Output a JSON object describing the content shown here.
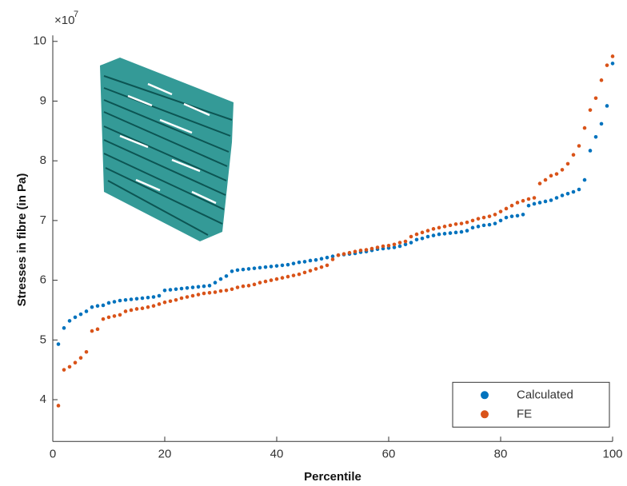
{
  "chart_data": {
    "type": "scatter",
    "x_label": "Percentile",
    "y_label": "Stresses in fibre (in Pa)",
    "y_scale_label": "×10",
    "y_scale_exponent": "7",
    "xlim": [
      0,
      100
    ],
    "xticks": [
      0,
      20,
      40,
      60,
      80,
      100
    ],
    "ylim": [
      3.3,
      10.1
    ],
    "yticks": [
      4,
      5,
      6,
      7,
      8,
      9,
      10
    ],
    "legend": "bottom-right",
    "x": [
      1,
      2,
      3,
      4,
      5,
      6,
      7,
      8,
      9,
      10,
      11,
      12,
      13,
      14,
      15,
      16,
      17,
      18,
      19,
      20,
      21,
      22,
      23,
      24,
      25,
      26,
      27,
      28,
      29,
      30,
      31,
      32,
      33,
      34,
      35,
      36,
      37,
      38,
      39,
      40,
      41,
      42,
      43,
      44,
      45,
      46,
      47,
      48,
      49,
      50,
      51,
      52,
      53,
      54,
      55,
      56,
      57,
      58,
      59,
      60,
      61,
      62,
      63,
      64,
      65,
      66,
      67,
      68,
      69,
      70,
      71,
      72,
      73,
      74,
      75,
      76,
      77,
      78,
      79,
      80,
      81,
      82,
      83,
      84,
      85,
      86,
      87,
      88,
      89,
      90,
      91,
      92,
      93,
      94,
      95,
      96,
      97,
      98,
      99,
      100
    ],
    "series": [
      {
        "name": "Calculated",
        "color": "#0072bd",
        "values": [
          4.93,
          5.2,
          5.32,
          5.38,
          5.43,
          5.48,
          5.55,
          5.57,
          5.58,
          5.62,
          5.64,
          5.66,
          5.67,
          5.68,
          5.69,
          5.7,
          5.71,
          5.72,
          5.74,
          5.83,
          5.84,
          5.85,
          5.86,
          5.87,
          5.88,
          5.89,
          5.9,
          5.91,
          5.96,
          6.02,
          6.07,
          6.15,
          6.17,
          6.18,
          6.19,
          6.2,
          6.21,
          6.22,
          6.23,
          6.24,
          6.25,
          6.26,
          6.28,
          6.3,
          6.31,
          6.33,
          6.34,
          6.36,
          6.38,
          6.4,
          6.42,
          6.43,
          6.44,
          6.45,
          6.47,
          6.48,
          6.5,
          6.52,
          6.53,
          6.54,
          6.55,
          6.57,
          6.6,
          6.63,
          6.68,
          6.7,
          6.73,
          6.75,
          6.77,
          6.78,
          6.79,
          6.8,
          6.81,
          6.83,
          6.88,
          6.9,
          6.92,
          6.93,
          6.95,
          7.0,
          7.05,
          7.07,
          7.08,
          7.1,
          7.25,
          7.28,
          7.3,
          7.32,
          7.34,
          7.38,
          7.42,
          7.45,
          7.48,
          7.52,
          7.68,
          8.17,
          8.4,
          8.62,
          8.92,
          9.63
        ]
      },
      {
        "name": "FE",
        "color": "#d95319",
        "values": [
          3.9,
          4.5,
          4.55,
          4.62,
          4.7,
          4.8,
          5.15,
          5.18,
          5.35,
          5.38,
          5.4,
          5.42,
          5.48,
          5.5,
          5.52,
          5.53,
          5.55,
          5.57,
          5.6,
          5.63,
          5.65,
          5.67,
          5.7,
          5.72,
          5.74,
          5.76,
          5.78,
          5.79,
          5.8,
          5.82,
          5.83,
          5.85,
          5.88,
          5.9,
          5.91,
          5.93,
          5.96,
          5.98,
          6.0,
          6.02,
          6.04,
          6.06,
          6.08,
          6.1,
          6.13,
          6.16,
          6.19,
          6.22,
          6.25,
          6.35,
          6.42,
          6.44,
          6.46,
          6.48,
          6.5,
          6.51,
          6.53,
          6.55,
          6.57,
          6.58,
          6.6,
          6.63,
          6.65,
          6.73,
          6.77,
          6.8,
          6.83,
          6.86,
          6.88,
          6.9,
          6.92,
          6.94,
          6.95,
          6.97,
          7.0,
          7.03,
          7.05,
          7.07,
          7.1,
          7.15,
          7.2,
          7.25,
          7.3,
          7.33,
          7.36,
          7.38,
          7.62,
          7.68,
          7.75,
          7.78,
          7.85,
          7.95,
          8.1,
          8.25,
          8.55,
          8.85,
          9.05,
          9.35,
          9.6,
          9.75
        ]
      }
    ]
  }
}
